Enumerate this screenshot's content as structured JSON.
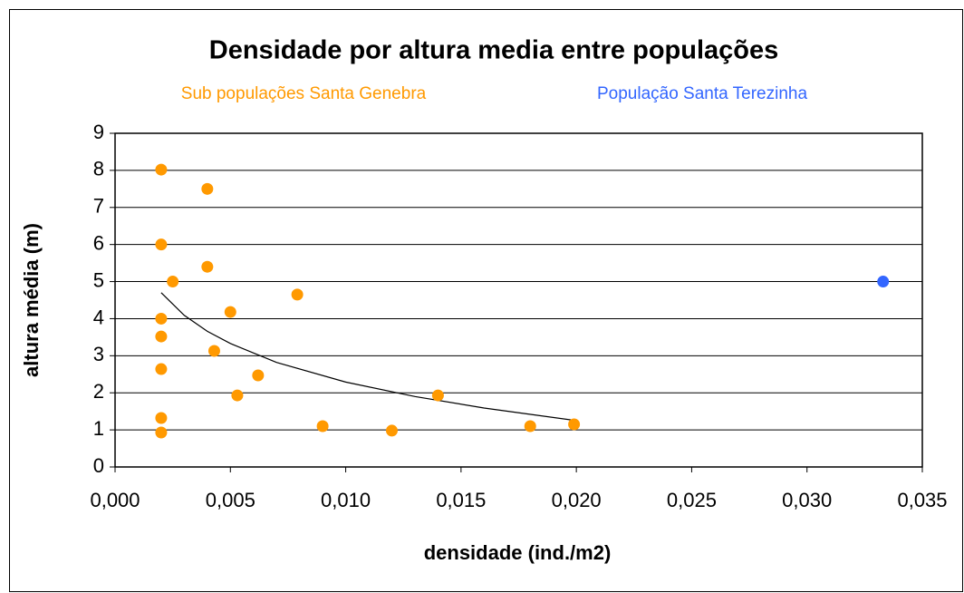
{
  "chart_data": {
    "type": "scatter",
    "title": "Densidade por altura media entre populações",
    "xlabel": "densidade (ind./m2)",
    "ylabel": "altura média (m)",
    "xlim": [
      0,
      0.035
    ],
    "ylim": [
      0,
      9
    ],
    "xticks": [
      {
        "value": 0,
        "label": "0,000"
      },
      {
        "value": 0.005,
        "label": "0,005"
      },
      {
        "value": 0.01,
        "label": "0,010"
      },
      {
        "value": 0.015,
        "label": "0,015"
      },
      {
        "value": 0.02,
        "label": "0,020"
      },
      {
        "value": 0.025,
        "label": "0,025"
      },
      {
        "value": 0.03,
        "label": "0,030"
      },
      {
        "value": 0.035,
        "label": "0,035"
      }
    ],
    "yticks": [
      0,
      1,
      2,
      3,
      4,
      5,
      6,
      7,
      8,
      9
    ],
    "grid": true,
    "legend": "top",
    "series": [
      {
        "name": "Sub populações  Santa Genebra",
        "color": "#ff9900",
        "x": [
          0.002,
          0.004,
          0.002,
          0.004,
          0.0025,
          0.0079,
          0.005,
          0.002,
          0.002,
          0.0043,
          0.002,
          0.0062,
          0.0053,
          0.014,
          0.002,
          0.009,
          0.012,
          0.018,
          0.0199,
          0.002
        ],
        "values": [
          8.02,
          7.5,
          6.0,
          5.4,
          5.0,
          4.65,
          4.18,
          4.0,
          3.52,
          3.13,
          2.64,
          2.47,
          1.93,
          1.93,
          1.32,
          1.1,
          0.98,
          1.1,
          1.15,
          0.93
        ]
      },
      {
        "name": "População  Santa  Terezinha",
        "color": "#3366ff",
        "x": [
          0.0333
        ],
        "values": [
          5.0
        ]
      }
    ],
    "trendline": {
      "color": "#000000",
      "x": [
        0.002,
        0.003,
        0.004,
        0.005,
        0.007,
        0.01,
        0.013,
        0.016,
        0.02
      ],
      "values": [
        4.7,
        4.09,
        3.66,
        3.33,
        2.82,
        2.29,
        1.9,
        1.59,
        1.25
      ]
    }
  }
}
